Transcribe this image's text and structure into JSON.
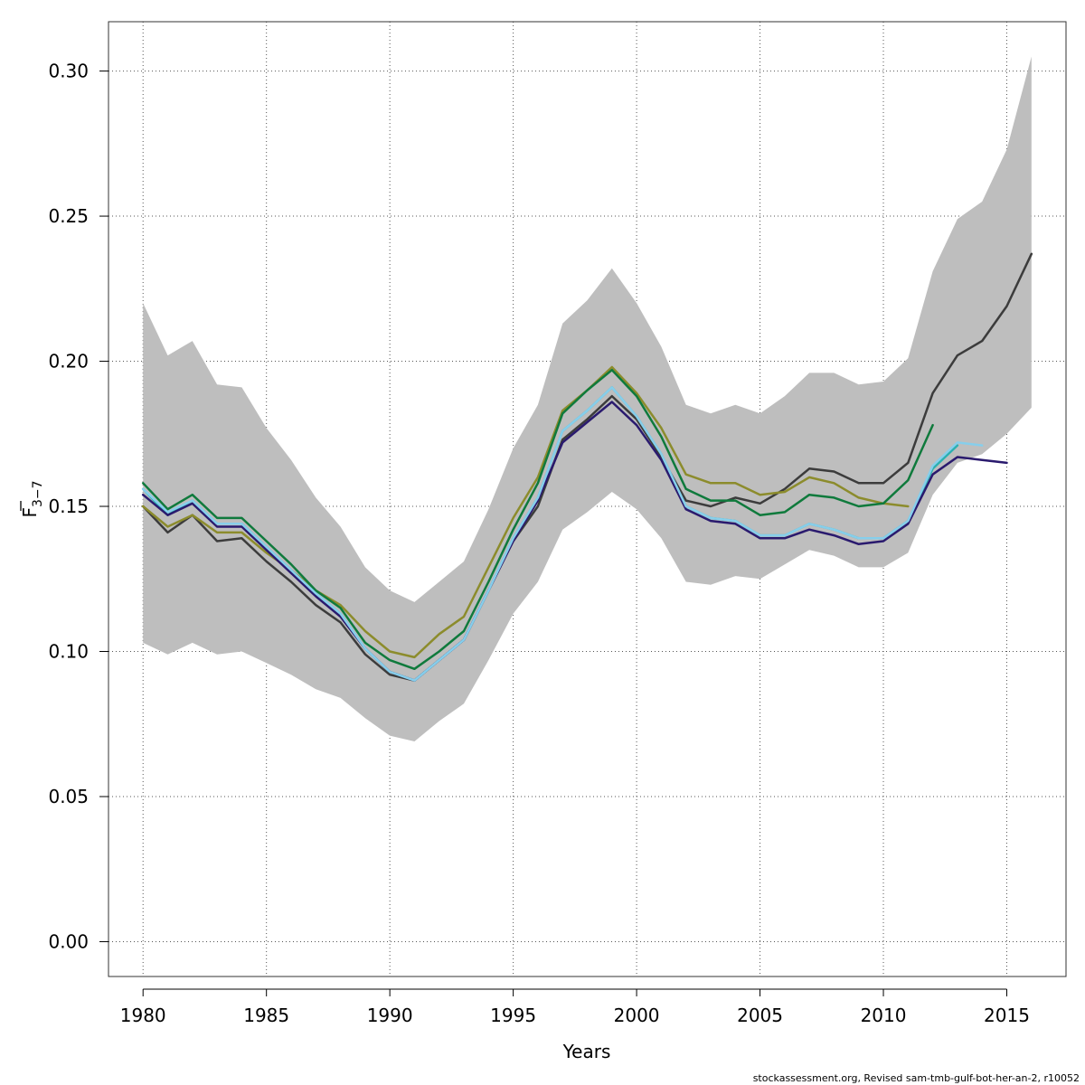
{
  "chart_data": {
    "type": "line",
    "xlabel": "Years",
    "ylabel_main": "F",
    "ylabel_sub": "3−7",
    "xlim": [
      1978.6,
      2017.4
    ],
    "ylim": [
      -0.012,
      0.317
    ],
    "x_ticks": [
      1980,
      1985,
      1990,
      1995,
      2000,
      2005,
      2010,
      2015
    ],
    "y_ticks": [
      0.0,
      0.05,
      0.1,
      0.15,
      0.2,
      0.25,
      0.3
    ],
    "y_tick_labels": [
      "0.00",
      "0.05",
      "0.10",
      "0.15",
      "0.20",
      "0.25",
      "0.30"
    ],
    "grid": true,
    "band": {
      "color": "#bebebe",
      "x": [
        1980,
        1981,
        1982,
        1983,
        1984,
        1985,
        1986,
        1987,
        1988,
        1989,
        1990,
        1991,
        1992,
        1993,
        1994,
        1995,
        1996,
        1997,
        1998,
        1999,
        2000,
        2001,
        2002,
        2003,
        2004,
        2005,
        2006,
        2007,
        2008,
        2009,
        2010,
        2011,
        2012,
        2013,
        2014,
        2015,
        2016
      ],
      "upper": [
        0.22,
        0.202,
        0.207,
        0.192,
        0.191,
        0.177,
        0.166,
        0.153,
        0.143,
        0.129,
        0.121,
        0.117,
        0.124,
        0.131,
        0.149,
        0.17,
        0.185,
        0.213,
        0.221,
        0.232,
        0.22,
        0.205,
        0.185,
        0.182,
        0.185,
        0.182,
        0.188,
        0.196,
        0.196,
        0.192,
        0.193,
        0.201,
        0.231,
        0.249,
        0.255,
        0.273,
        0.305
      ],
      "lower": [
        0.103,
        0.099,
        0.103,
        0.099,
        0.1,
        0.096,
        0.092,
        0.087,
        0.084,
        0.077,
        0.071,
        0.069,
        0.076,
        0.082,
        0.097,
        0.113,
        0.124,
        0.142,
        0.148,
        0.155,
        0.149,
        0.139,
        0.124,
        0.123,
        0.126,
        0.125,
        0.13,
        0.135,
        0.133,
        0.129,
        0.129,
        0.134,
        0.154,
        0.165,
        0.168,
        0.175,
        0.184
      ]
    },
    "series": [
      {
        "color": "#3c3c3c",
        "start": 1980,
        "values": [
          0.15,
          0.141,
          0.147,
          0.138,
          0.139,
          0.131,
          0.124,
          0.116,
          0.11,
          0.099,
          0.092,
          0.09,
          0.097,
          0.104,
          0.121,
          0.138,
          0.15,
          0.173,
          0.18,
          0.188,
          0.18,
          0.167,
          0.152,
          0.15,
          0.153,
          0.151,
          0.156,
          0.163,
          0.162,
          0.158,
          0.158,
          0.165,
          0.189,
          0.202,
          0.207,
          0.219,
          0.237
        ]
      },
      {
        "color": "#8c8c2c",
        "start": 1980,
        "values": [
          0.15,
          0.143,
          0.147,
          0.141,
          0.141,
          0.134,
          0.128,
          0.121,
          0.116,
          0.107,
          0.1,
          0.098,
          0.106,
          0.112,
          0.129,
          0.146,
          0.16,
          0.183,
          0.19,
          0.198,
          0.189,
          0.177,
          0.161,
          0.158,
          0.158,
          0.154,
          0.155,
          0.16,
          0.158,
          0.153,
          0.151,
          0.15
        ]
      },
      {
        "color": "#0f7a3c",
        "start": 1980,
        "values": [
          0.158,
          0.149,
          0.154,
          0.146,
          0.146,
          0.138,
          0.13,
          0.121,
          0.115,
          0.103,
          0.097,
          0.094,
          0.1,
          0.107,
          0.124,
          0.142,
          0.158,
          0.182,
          0.19,
          0.197,
          0.188,
          0.174,
          0.156,
          0.152,
          0.152,
          0.147,
          0.148,
          0.154,
          0.153,
          0.15,
          0.151,
          0.159,
          0.178
        ]
      },
      {
        "color": "#2ab0b0",
        "start": 1980,
        "values": [
          0.156,
          0.147,
          0.152,
          0.144,
          0.144,
          0.136,
          0.128,
          0.12,
          0.113,
          0.101,
          0.093,
          0.09,
          0.097,
          0.104,
          0.121,
          0.139,
          0.153,
          0.176,
          0.183,
          0.191,
          0.181,
          0.168,
          0.15,
          0.146,
          0.145,
          0.14,
          0.14,
          0.144,
          0.142,
          0.139,
          0.139,
          0.145,
          0.163,
          0.171
        ]
      },
      {
        "color": "#2a1a6e",
        "start": 1980,
        "values": [
          0.154,
          0.147,
          0.151,
          0.143,
          0.143,
          0.135,
          0.127,
          0.119,
          0.112,
          0.101,
          0.093,
          0.09,
          0.097,
          0.104,
          0.121,
          0.138,
          0.152,
          0.172,
          0.179,
          0.186,
          0.178,
          0.166,
          0.149,
          0.145,
          0.144,
          0.139,
          0.139,
          0.142,
          0.14,
          0.137,
          0.138,
          0.144,
          0.161,
          0.167,
          0.166,
          0.165
        ]
      },
      {
        "color": "#87ceeb",
        "start": 1980,
        "values": [
          0.156,
          0.148,
          0.152,
          0.144,
          0.144,
          0.136,
          0.128,
          0.12,
          0.113,
          0.101,
          0.093,
          0.09,
          0.097,
          0.104,
          0.121,
          0.139,
          0.153,
          0.176,
          0.183,
          0.191,
          0.181,
          0.168,
          0.15,
          0.146,
          0.145,
          0.14,
          0.14,
          0.144,
          0.142,
          0.139,
          0.139,
          0.145,
          0.164,
          0.172,
          0.171
        ]
      }
    ]
  },
  "footer": "stockassessment.org, Revised  sam-tmb-gulf-bot-her-an-2, r10052"
}
